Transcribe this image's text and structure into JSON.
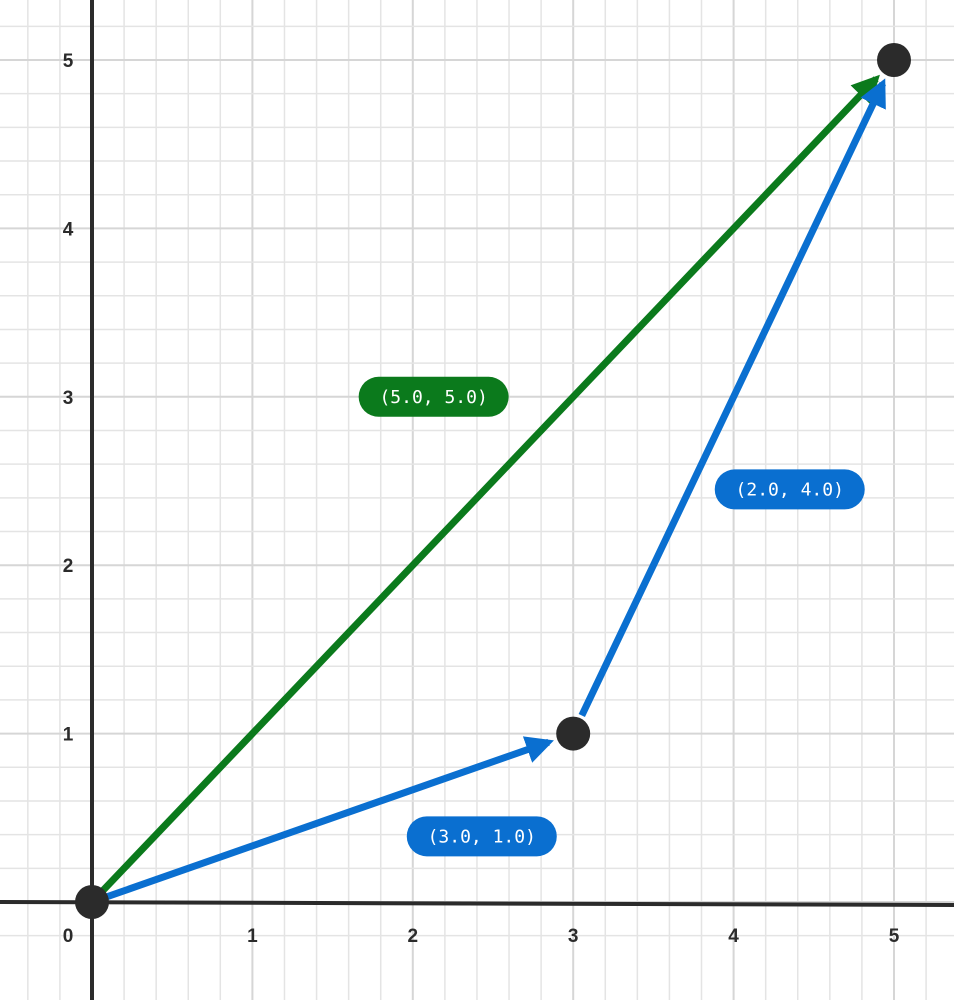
{
  "x_ticks": [
    "0",
    "1",
    "2",
    "3",
    "4",
    "5"
  ],
  "y_ticks": [
    "1",
    "2",
    "3",
    "4",
    "5"
  ],
  "points": [
    {
      "name": "origin",
      "x": 0,
      "y": 0
    },
    {
      "name": "point-a",
      "x": 3,
      "y": 1
    },
    {
      "name": "point-b",
      "x": 5,
      "y": 5
    }
  ],
  "vectors": [
    {
      "name": "green",
      "from": [
        0,
        0
      ],
      "to": [
        5,
        5
      ],
      "label": "(5.0, 5.0)",
      "color": "#0b7a1c"
    },
    {
      "name": "blue-1",
      "from": [
        0,
        0
      ],
      "to": [
        3,
        1
      ],
      "label": "(3.0, 1.0)",
      "color": "#0a6fd0"
    },
    {
      "name": "blue-2",
      "from": [
        3,
        1
      ],
      "to": [
        5,
        5
      ],
      "label": "(2.0, 4.0)",
      "color": "#0a6fd0"
    }
  ],
  "colors": {
    "axis": "#2b2b2b",
    "grid_minor": "#e4e4e4",
    "grid_major": "#d6d6d6",
    "point": "#2b2b2b"
  }
}
